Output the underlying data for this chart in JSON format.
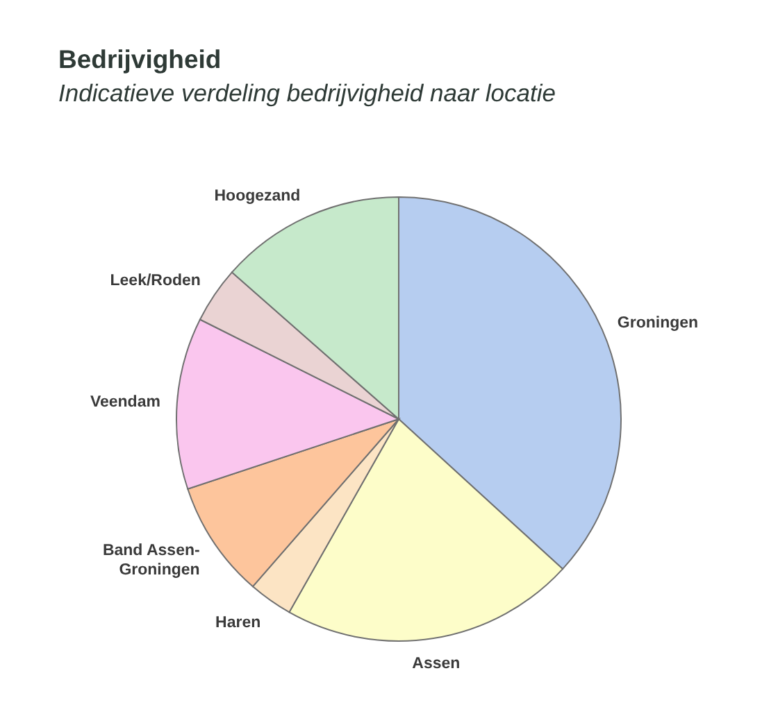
{
  "chart_data": {
    "type": "pie",
    "title": "Bedrijvigheid",
    "subtitle": "Indicatieve verdeling bedrijvigheid naar locatie",
    "categories": [
      "Groningen",
      "Assen",
      "Haren",
      "Band Assen-Groningen",
      "Veendam",
      "Leek/Roden",
      "Hoogezand"
    ],
    "values": [
      36.8,
      21.4,
      3.2,
      8.5,
      12.5,
      4.1,
      13.5
    ],
    "colors": [
      "#b6cdf0",
      "#fdfdc9",
      "#fce4c4",
      "#fdc59c",
      "#fac6ee",
      "#ead3d3",
      "#c6e9cb"
    ]
  }
}
